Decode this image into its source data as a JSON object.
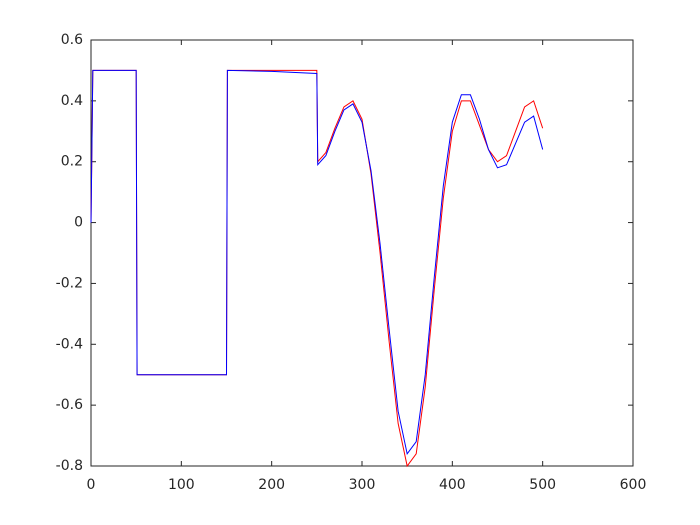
{
  "chart_data": {
    "type": "line",
    "x": [
      0,
      2,
      50,
      51,
      150,
      151,
      200,
      250,
      251,
      260,
      270,
      280,
      290,
      300,
      310,
      320,
      330,
      340,
      350,
      360,
      370,
      380,
      390,
      400,
      410,
      420,
      430,
      440,
      450,
      460,
      470,
      480,
      490,
      500
    ],
    "series": [
      {
        "color": "#ff0000",
        "values": [
          0,
          0.5,
          0.5,
          -0.5,
          -0.5,
          0.5,
          0.5,
          0.5,
          0.2,
          0.23,
          0.31,
          0.38,
          0.4,
          0.34,
          0.16,
          -0.1,
          -0.39,
          -0.66,
          -0.8,
          -0.76,
          -0.54,
          -0.22,
          0.08,
          0.3,
          0.4,
          0.4,
          0.32,
          0.24,
          0.2,
          0.22,
          0.3,
          0.38,
          0.4,
          0.31
        ]
      },
      {
        "color": "#0000ff",
        "values": [
          0,
          0.5,
          0.5,
          -0.5,
          -0.5,
          0.5,
          0.497,
          0.49,
          0.19,
          0.22,
          0.3,
          0.37,
          0.39,
          0.33,
          0.17,
          -0.07,
          -0.35,
          -0.62,
          -0.76,
          -0.72,
          -0.5,
          -0.18,
          0.12,
          0.33,
          0.42,
          0.42,
          0.34,
          0.24,
          0.18,
          0.19,
          0.26,
          0.33,
          0.35,
          0.24
        ]
      }
    ],
    "xlim": [
      0,
      600
    ],
    "xticks": [
      0,
      100,
      200,
      300,
      400,
      500,
      600
    ],
    "ylim": [
      -0.8,
      0.6
    ],
    "yticks": [
      -0.8,
      -0.6,
      -0.4,
      -0.2,
      0,
      0.2,
      0.4,
      0.6
    ]
  }
}
